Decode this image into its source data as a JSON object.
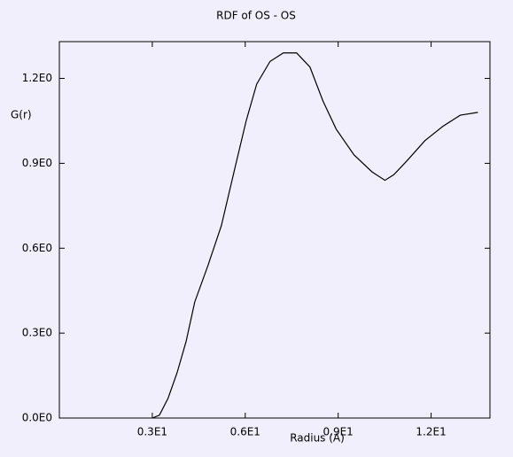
{
  "chart_data": {
    "type": "line",
    "title": "RDF of OS - OS",
    "x_label": "Radius (A)",
    "y_label": "G(r)",
    "x": [
      3.0,
      3.23,
      3.51,
      3.8,
      4.09,
      4.37,
      4.8,
      5.23,
      5.66,
      6.03,
      6.37,
      6.8,
      7.23,
      7.66,
      8.09,
      8.51,
      8.94,
      9.51,
      10.09,
      10.51,
      10.8,
      11.23,
      11.8,
      12.37,
      12.94,
      13.51
    ],
    "series": [
      {
        "name": "G(r)",
        "color": "#000000",
        "values": [
          0.0,
          0.01,
          0.07,
          0.16,
          0.27,
          0.41,
          0.54,
          0.68,
          0.88,
          1.05,
          1.18,
          1.26,
          1.29,
          1.29,
          1.24,
          1.12,
          1.02,
          0.93,
          0.87,
          0.84,
          0.86,
          0.91,
          0.98,
          1.03,
          1.07,
          1.08
        ]
      }
    ],
    "xlim": [
      0,
      13.9
    ],
    "ylim": [
      0,
      1.33
    ],
    "xticks": [
      {
        "value": 3,
        "label": "0.3E1"
      },
      {
        "value": 6,
        "label": "0.6E1"
      },
      {
        "value": 9,
        "label": "0.9E1"
      },
      {
        "value": 12,
        "label": "1.2E1"
      }
    ],
    "yticks": [
      {
        "value": 0,
        "label": "0.0E0"
      },
      {
        "value": 0.3,
        "label": "0.3E0"
      },
      {
        "value": 0.6,
        "label": "0.6E0"
      },
      {
        "value": 0.9,
        "label": "0.9E0"
      },
      {
        "value": 1.2,
        "label": "1.2E0"
      }
    ]
  }
}
